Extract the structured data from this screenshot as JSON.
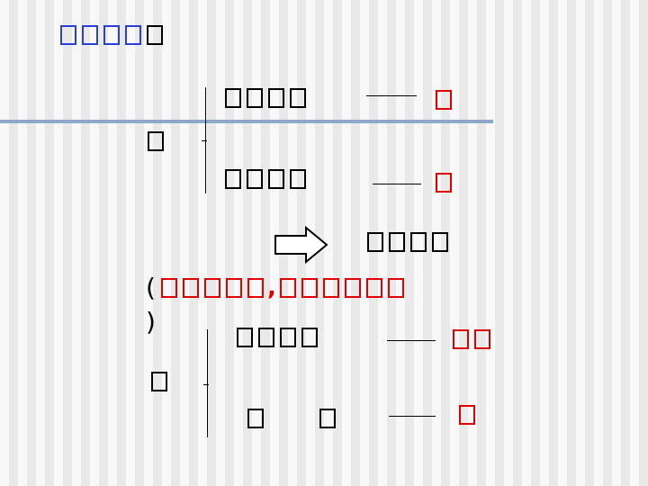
{
  "slide": {
    "heading": {
      "blue_glyphs": 4,
      "black_glyphs": 1
    },
    "group1": {
      "label_glyphs": 1,
      "rows": [
        {
          "term_glyphs": 4,
          "result_glyphs": 1,
          "result_color": "#e00000"
        },
        {
          "term_glyphs": 4,
          "result_glyphs": 1,
          "result_color": "#e00000"
        }
      ]
    },
    "arrow": {
      "after_glyphs": 4
    },
    "note": {
      "open_paren": "(",
      "close_paren": ")",
      "comma": ",",
      "red_glyphs_before": 5,
      "red_glyphs_after": 6
    },
    "group2": {
      "label_glyphs": 1,
      "rows": [
        {
          "term_glyphs": 4,
          "result_glyphs": 2,
          "result_color": "#e00000"
        },
        {
          "term_glyphs": 2,
          "result_glyphs": 1,
          "result_color": "#e00000"
        }
      ]
    },
    "colors": {
      "accent_blue": "#2a3fd6",
      "accent_red": "#e00000",
      "rule": "#8ea8cc"
    }
  }
}
